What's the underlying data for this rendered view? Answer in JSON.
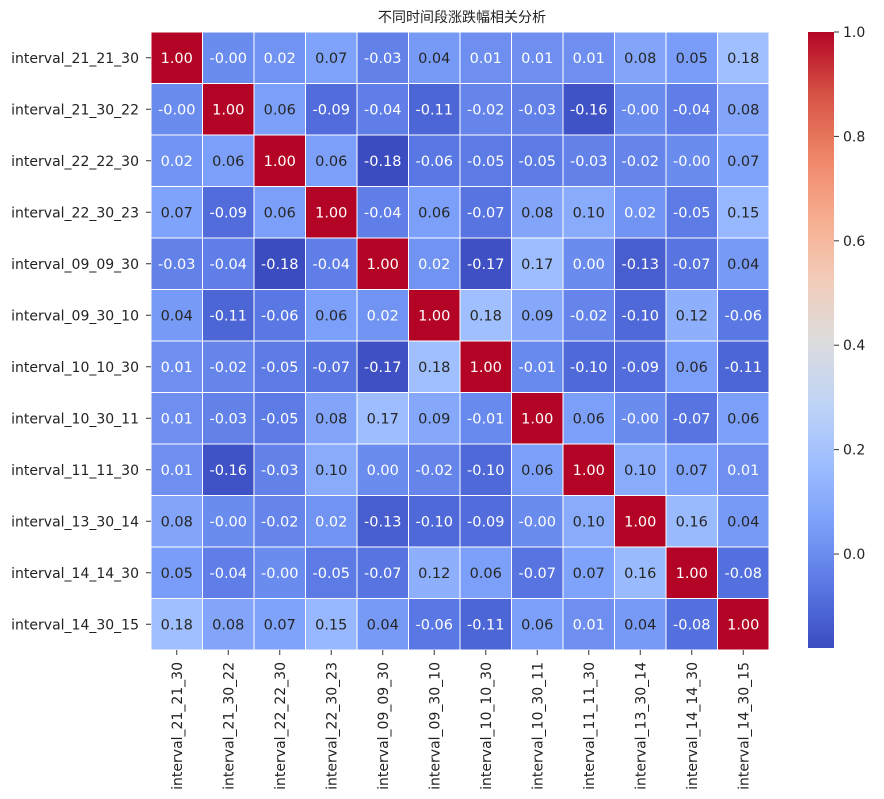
{
  "chart_data": {
    "type": "heatmap",
    "title": "不同时间段涨跌幅相关分析",
    "labels": [
      "interval_21_21_30",
      "interval_21_30_22",
      "interval_22_22_30",
      "interval_22_30_23",
      "interval_09_09_30",
      "interval_09_30_10",
      "interval_10_10_30",
      "interval_10_30_11",
      "interval_11_11_30",
      "interval_13_30_14",
      "interval_14_14_30",
      "interval_14_30_15"
    ],
    "matrix": [
      [
        1.0,
        -0.0,
        0.02,
        0.07,
        -0.03,
        0.04,
        0.01,
        0.01,
        0.01,
        0.08,
        0.05,
        0.18
      ],
      [
        -0.0,
        1.0,
        0.06,
        -0.09,
        -0.04,
        -0.11,
        -0.02,
        -0.03,
        -0.16,
        -0.0,
        -0.04,
        0.08
      ],
      [
        0.02,
        0.06,
        1.0,
        0.06,
        -0.18,
        -0.06,
        -0.05,
        -0.05,
        -0.03,
        -0.02,
        -0.0,
        0.07
      ],
      [
        0.07,
        -0.09,
        0.06,
        1.0,
        -0.04,
        0.06,
        -0.07,
        0.08,
        0.1,
        0.02,
        -0.05,
        0.15
      ],
      [
        -0.03,
        -0.04,
        -0.18,
        -0.04,
        1.0,
        0.02,
        -0.17,
        0.17,
        0.0,
        -0.13,
        -0.07,
        0.04
      ],
      [
        0.04,
        -0.11,
        -0.06,
        0.06,
        0.02,
        1.0,
        0.18,
        0.09,
        -0.02,
        -0.1,
        0.12,
        -0.06
      ],
      [
        0.01,
        -0.02,
        -0.05,
        -0.07,
        -0.17,
        0.18,
        1.0,
        -0.01,
        -0.1,
        -0.09,
        0.06,
        -0.11
      ],
      [
        0.01,
        -0.03,
        -0.05,
        0.08,
        0.17,
        0.09,
        -0.01,
        1.0,
        0.06,
        -0.0,
        -0.07,
        0.06
      ],
      [
        0.01,
        -0.16,
        -0.03,
        0.1,
        0.0,
        -0.02,
        -0.1,
        0.06,
        1.0,
        0.1,
        0.07,
        0.01
      ],
      [
        0.08,
        -0.0,
        -0.02,
        0.02,
        -0.13,
        -0.1,
        -0.09,
        -0.0,
        0.1,
        1.0,
        0.16,
        0.04
      ],
      [
        0.05,
        -0.04,
        -0.0,
        -0.05,
        -0.07,
        0.12,
        0.06,
        -0.07,
        0.07,
        0.16,
        1.0,
        -0.08
      ],
      [
        0.18,
        0.08,
        0.07,
        0.15,
        0.04,
        -0.06,
        -0.11,
        0.06,
        0.01,
        0.04,
        -0.08,
        1.0
      ]
    ],
    "value_format": "2-decimal",
    "colormap": "coolwarm",
    "colormap_stops": [
      "#3b4cc0",
      "#5977e3",
      "#7b9ff9",
      "#9ebeff",
      "#c0d4f5",
      "#dddcdc",
      "#f2cbb7",
      "#f7ac8e",
      "#ee8468",
      "#d65244",
      "#b40426"
    ],
    "vmin": -0.18,
    "vmax": 1.0,
    "colorbar_ticks": [
      0.0,
      0.2,
      0.4,
      0.6,
      0.8,
      1.0
    ],
    "cell_border_color": "#ffffff",
    "annotation_colors": {
      "dark": "#262626",
      "light": "#ffffff"
    }
  }
}
